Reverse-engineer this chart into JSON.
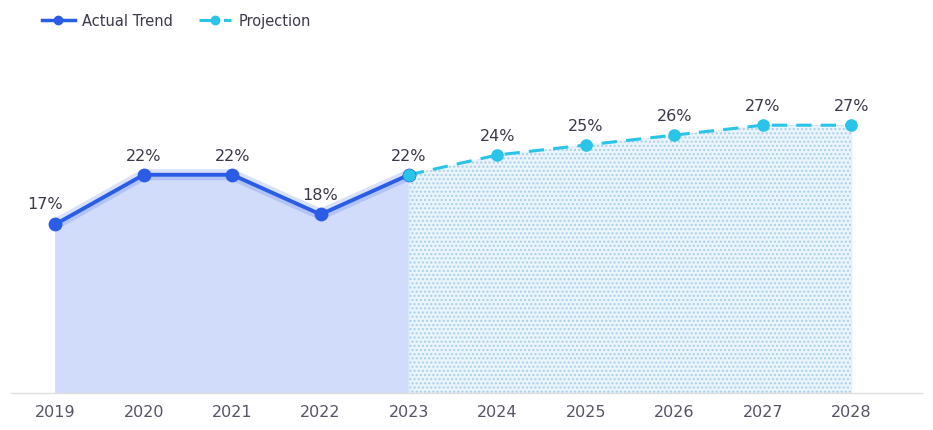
{
  "actual_years": [
    2019,
    2020,
    2021,
    2022,
    2023
  ],
  "actual_values": [
    17,
    22,
    22,
    18,
    22
  ],
  "proj_years": [
    2023,
    2024,
    2025,
    2026,
    2027,
    2028
  ],
  "proj_values": [
    22,
    24,
    25,
    26,
    27,
    27
  ],
  "actual_line_color": "#2B5CE6",
  "actual_fill_color": "#D0DCFA",
  "proj_line_color": "#29C4E8",
  "proj_fill_hatch_color": "#BDE4F5",
  "label_color": "#3A3A4A",
  "label_fontsize": 11.5,
  "legend_fontsize": 10.5,
  "background_color": "#FFFFFF",
  "ylim": [
    0,
    36
  ],
  "xlim": [
    2018.5,
    2028.8
  ],
  "legend_actual_label": "Actual Trend",
  "legend_proj_label": "Projection"
}
